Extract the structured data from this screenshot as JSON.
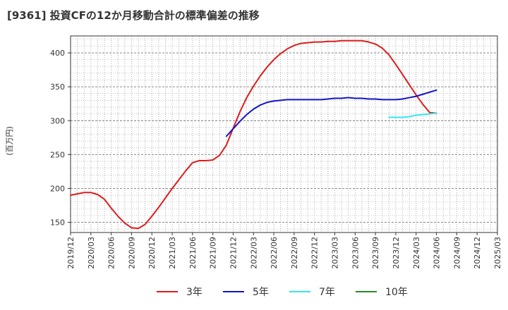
{
  "chart_data": {
    "type": "line",
    "title": "[9361]  投資CFの12か月移動合計の標準偏差の推移",
    "ylabel": "(百万円)",
    "xlabel": "",
    "ylim": [
      135,
      425
    ],
    "yticks": [
      150,
      200,
      250,
      300,
      350,
      400
    ],
    "xticks": [
      "2019/12",
      "2020/03",
      "2020/06",
      "2020/09",
      "2020/12",
      "2021/03",
      "2021/06",
      "2021/09",
      "2021/12",
      "2022/03",
      "2022/06",
      "2022/09",
      "2022/12",
      "2023/03",
      "2023/06",
      "2023/09",
      "2023/12",
      "2024/03",
      "2024/06",
      "2024/09",
      "2024/12",
      "2025/03"
    ],
    "grid": true,
    "legend_position": "bottom",
    "series": [
      {
        "name": "3年",
        "color": "#dd1c1c",
        "points": [
          [
            "2019/12",
            190
          ],
          [
            "2020/01",
            192
          ],
          [
            "2020/02",
            194
          ],
          [
            "2020/03",
            194
          ],
          [
            "2020/04",
            191
          ],
          [
            "2020/05",
            184
          ],
          [
            "2020/06",
            171
          ],
          [
            "2020/07",
            159
          ],
          [
            "2020/08",
            149
          ],
          [
            "2020/09",
            142
          ],
          [
            "2020/10",
            141
          ],
          [
            "2020/11",
            147
          ],
          [
            "2020/12",
            159
          ],
          [
            "2021/01",
            172
          ],
          [
            "2021/02",
            186
          ],
          [
            "2021/03",
            200
          ],
          [
            "2021/04",
            213
          ],
          [
            "2021/05",
            226
          ],
          [
            "2021/06",
            238
          ],
          [
            "2021/07",
            241
          ],
          [
            "2021/08",
            241
          ],
          [
            "2021/09",
            242
          ],
          [
            "2021/10",
            249
          ],
          [
            "2021/11",
            264
          ],
          [
            "2021/12",
            289
          ],
          [
            "2022/01",
            313
          ],
          [
            "2022/02",
            334
          ],
          [
            "2022/03",
            351
          ],
          [
            "2022/04",
            366
          ],
          [
            "2022/05",
            379
          ],
          [
            "2022/06",
            390
          ],
          [
            "2022/07",
            399
          ],
          [
            "2022/08",
            406
          ],
          [
            "2022/09",
            411
          ],
          [
            "2022/10",
            414
          ],
          [
            "2022/11",
            415
          ],
          [
            "2022/12",
            416
          ],
          [
            "2023/01",
            416
          ],
          [
            "2023/02",
            417
          ],
          [
            "2023/03",
            417
          ],
          [
            "2023/04",
            418
          ],
          [
            "2023/05",
            418
          ],
          [
            "2023/06",
            418
          ],
          [
            "2023/07",
            418
          ],
          [
            "2023/08",
            416
          ],
          [
            "2023/09",
            413
          ],
          [
            "2023/10",
            407
          ],
          [
            "2023/11",
            397
          ],
          [
            "2023/12",
            383
          ],
          [
            "2024/01",
            368
          ],
          [
            "2024/02",
            353
          ],
          [
            "2024/03",
            338
          ],
          [
            "2024/04",
            324
          ],
          [
            "2024/05",
            312
          ],
          [
            "2024/06",
            311
          ]
        ]
      },
      {
        "name": "5年",
        "color": "#1414c8",
        "points": [
          [
            "2021/11",
            277
          ],
          [
            "2021/12",
            288
          ],
          [
            "2022/01",
            299
          ],
          [
            "2022/02",
            309
          ],
          [
            "2022/03",
            317
          ],
          [
            "2022/04",
            323
          ],
          [
            "2022/05",
            327
          ],
          [
            "2022/06",
            329
          ],
          [
            "2022/07",
            330
          ],
          [
            "2022/08",
            331
          ],
          [
            "2022/09",
            331
          ],
          [
            "2022/10",
            331
          ],
          [
            "2022/11",
            331
          ],
          [
            "2022/12",
            331
          ],
          [
            "2023/01",
            331
          ],
          [
            "2023/02",
            332
          ],
          [
            "2023/03",
            333
          ],
          [
            "2023/04",
            333
          ],
          [
            "2023/05",
            334
          ],
          [
            "2023/06",
            333
          ],
          [
            "2023/07",
            333
          ],
          [
            "2023/08",
            332
          ],
          [
            "2023/09",
            332
          ],
          [
            "2023/10",
            331
          ],
          [
            "2023/11",
            331
          ],
          [
            "2023/12",
            331
          ],
          [
            "2024/01",
            332
          ],
          [
            "2024/02",
            334
          ],
          [
            "2024/03",
            336
          ],
          [
            "2024/04",
            339
          ],
          [
            "2024/05",
            342
          ],
          [
            "2024/06",
            345
          ]
        ]
      },
      {
        "name": "7年",
        "color": "#33e6ee",
        "points": [
          [
            "2023/11",
            305
          ],
          [
            "2023/12",
            305
          ],
          [
            "2024/01",
            305
          ],
          [
            "2024/02",
            306
          ],
          [
            "2024/03",
            308
          ],
          [
            "2024/04",
            309
          ],
          [
            "2024/05",
            310
          ],
          [
            "2024/06",
            311
          ]
        ]
      },
      {
        "name": "10年",
        "color": "#2a8a2a",
        "points": []
      }
    ]
  }
}
